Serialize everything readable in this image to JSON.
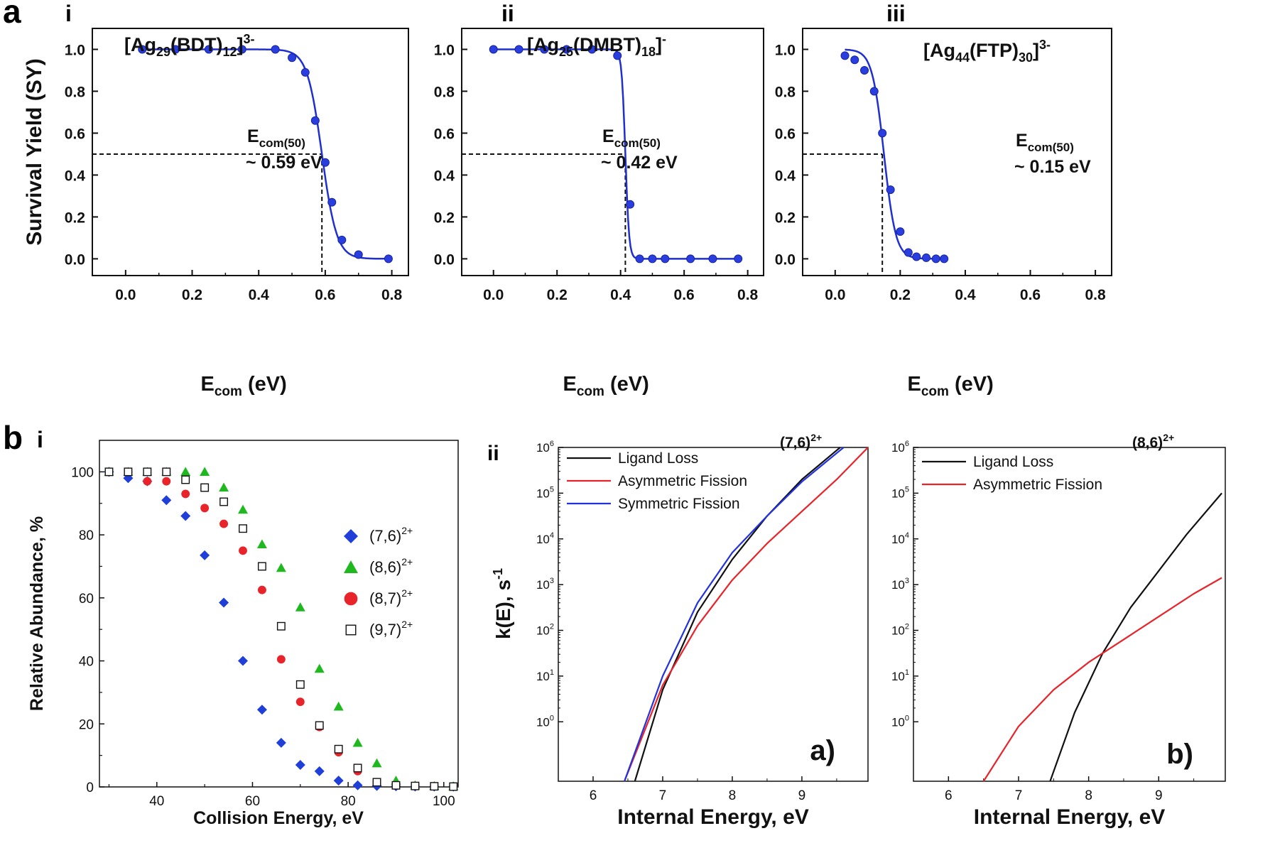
{
  "panel_labels": {
    "a": "a",
    "b": "b",
    "a_i": "i",
    "a_ii": "ii",
    "a_iii": "iii",
    "b_i": "i",
    "b_ii": "ii"
  },
  "chart_data": [
    {
      "id": "a-i",
      "type": "scatter",
      "title": "[Ag29(BDT)12]3-",
      "title_parts": {
        "base": "[Ag",
        "n1": "29",
        "mid": "(BDT)",
        "n2": "12",
        "close": "]",
        "charge": "3-"
      },
      "xlabel": "Ecom (eV)",
      "xlabel_parts": {
        "main": "E",
        "sub": "com",
        "tail": " (eV)"
      },
      "ylabel": "Survival Yield (SY)",
      "xlim": [
        -0.1,
        0.85
      ],
      "ylim": [
        -0.08,
        1.1
      ],
      "xticks": [
        0.0,
        0.2,
        0.4,
        0.6,
        0.8
      ],
      "yticks": [
        0.0,
        0.2,
        0.4,
        0.6,
        0.8,
        1.0
      ],
      "x": [
        0.05,
        0.15,
        0.25,
        0.35,
        0.45,
        0.5,
        0.54,
        0.57,
        0.6,
        0.62,
        0.65,
        0.7,
        0.79
      ],
      "y": [
        1.0,
        1.0,
        1.0,
        1.0,
        1.0,
        0.96,
        0.89,
        0.66,
        0.46,
        0.27,
        0.09,
        0.02,
        0.0
      ],
      "fit": {
        "x0": 0.59,
        "k": 45
      },
      "e50": 0.59,
      "annotation": {
        "label_main": "E",
        "label_sub": "com(50)",
        "value": "~ 0.59 eV"
      }
    },
    {
      "id": "a-ii",
      "type": "scatter",
      "title": "[Ag25(DMBT)18]-",
      "title_parts": {
        "base": "[Ag",
        "n1": "25",
        "mid": "(DMBT)",
        "n2": "18",
        "close": "]",
        "charge": "-"
      },
      "xlabel": "Ecom (eV)",
      "xlabel_parts": {
        "main": "E",
        "sub": "com",
        "tail": " (eV)"
      },
      "xlim": [
        -0.1,
        0.85
      ],
      "ylim": [
        -0.08,
        1.1
      ],
      "xticks": [
        0.0,
        0.2,
        0.4,
        0.6,
        0.8
      ],
      "yticks": [
        0.0,
        0.2,
        0.4,
        0.6,
        0.8,
        1.0
      ],
      "x": [
        0.0,
        0.08,
        0.16,
        0.23,
        0.31,
        0.39,
        0.43,
        0.46,
        0.5,
        0.54,
        0.62,
        0.69,
        0.77
      ],
      "y": [
        1.0,
        1.0,
        1.0,
        1.0,
        1.0,
        0.97,
        0.26,
        0.0,
        0.0,
        0.0,
        0.0,
        0.0,
        0.0
      ],
      "fit": {
        "x0": 0.415,
        "k": 170
      },
      "e50": 0.415,
      "annotation": {
        "label_main": "E",
        "label_sub": "com(50)",
        "value": "~ 0.42 eV"
      }
    },
    {
      "id": "a-iii",
      "type": "scatter",
      "title": "[Ag44(FTP)30]3-",
      "title_parts": {
        "base": "[Ag",
        "n1": "44",
        "mid": "(FTP)",
        "n2": "30",
        "close": "]",
        "charge": "3-"
      },
      "xlabel": "Ecom (eV)",
      "xlabel_parts": {
        "main": "E",
        "sub": "com",
        "tail": " (eV)"
      },
      "xlim": [
        -0.1,
        0.85
      ],
      "ylim": [
        -0.08,
        1.1
      ],
      "xticks": [
        0.0,
        0.2,
        0.4,
        0.6,
        0.8
      ],
      "yticks": [
        0.0,
        0.2,
        0.4,
        0.6,
        0.8,
        1.0
      ],
      "x": [
        0.03,
        0.06,
        0.09,
        0.12,
        0.145,
        0.17,
        0.2,
        0.225,
        0.25,
        0.28,
        0.31,
        0.335
      ],
      "y": [
        0.97,
        0.95,
        0.9,
        0.8,
        0.6,
        0.33,
        0.13,
        0.03,
        0.01,
        0.005,
        0.0,
        0.0
      ],
      "fit": {
        "x0": 0.15,
        "k": 55
      },
      "e50": 0.145,
      "annotation": {
        "label_main": "E",
        "label_sub": "com(50)",
        "value": "~ 0.15 eV"
      }
    },
    {
      "id": "b-i",
      "type": "scatter",
      "xlabel": "Collision Energy, eV",
      "ylabel": "Relative Abundance, %",
      "xlim": [
        28,
        103
      ],
      "ylim": [
        0,
        110
      ],
      "xticks": [
        40,
        60,
        80,
        100
      ],
      "yticks": [
        0,
        20,
        40,
        60,
        80,
        100
      ],
      "series": [
        {
          "name": "(7,6)2+",
          "label_main": "(7,6)",
          "label_sup": "2+",
          "marker": "diamond",
          "color": "#1f3fd8",
          "x": [
            30,
            34,
            38,
            42,
            46,
            50,
            54,
            58,
            62,
            66,
            70,
            74,
            78,
            82,
            86,
            90,
            94,
            98,
            102
          ],
          "y": [
            100,
            98,
            97,
            91,
            86,
            73.5,
            58.5,
            40,
            24.5,
            14,
            7,
            5,
            2,
            0.5,
            0.3,
            0.2,
            0.1,
            0.1,
            0.1
          ]
        },
        {
          "name": "(8,6)2+",
          "label_main": "(8,6)",
          "label_sup": "2+",
          "marker": "triangle",
          "color": "#1fb81f",
          "x": [
            30,
            34,
            38,
            42,
            46,
            50,
            54,
            58,
            62,
            66,
            70,
            74,
            78,
            82,
            86,
            90,
            94,
            98,
            102
          ],
          "y": [
            100,
            100,
            100,
            100,
            100,
            100,
            95,
            88,
            77,
            69.5,
            57,
            37.5,
            25.5,
            14,
            7.5,
            2,
            0.5,
            0.3,
            0.2
          ]
        },
        {
          "name": "(8,7)2+",
          "label_main": "(8,7)",
          "label_sup": "2+",
          "marker": "circle",
          "color": "#e8232a",
          "x": [
            30,
            34,
            38,
            42,
            46,
            50,
            54,
            58,
            62,
            66,
            70,
            74,
            78,
            82,
            86,
            90,
            94,
            98,
            102
          ],
          "y": [
            100,
            100,
            97,
            97,
            93,
            88.5,
            83.5,
            75,
            62.5,
            40.5,
            27,
            19,
            11,
            5,
            1.5,
            0.5,
            0.3,
            0.2,
            0.1
          ]
        },
        {
          "name": "(9,7)2+",
          "label_main": "(9,7)",
          "label_sup": "2+",
          "marker": "square-open",
          "color": "#111111",
          "x": [
            30,
            34,
            38,
            42,
            46,
            50,
            54,
            58,
            62,
            66,
            70,
            74,
            78,
            82,
            86,
            90,
            94,
            98,
            102
          ],
          "y": [
            100,
            100,
            100,
            100,
            97.5,
            95,
            90.5,
            82,
            70,
            51,
            32.5,
            19.5,
            12,
            6,
            1.5,
            0.5,
            0.3,
            0.2,
            0.1
          ]
        }
      ]
    },
    {
      "id": "b-ii-a",
      "type": "line",
      "yscale": "log",
      "title": "(7,6)2+",
      "title_parts": {
        "main": "(7,6)",
        "sup": "2+"
      },
      "corner_label": "a)",
      "xlabel": "Internal Energy, eV",
      "ylabel": "k(E), s-1",
      "ylabel_parts": {
        "main": "k(E), s",
        "sup": "-1"
      },
      "xlim": [
        5.5,
        9.95
      ],
      "ylim_exp": [
        -1.3,
        6
      ],
      "xticks": [
        6,
        7,
        8,
        9
      ],
      "yticks_exp": [
        0,
        1,
        2,
        3,
        4,
        5,
        6
      ],
      "series": [
        {
          "name": "Ligand Loss",
          "color": "#111111",
          "x": [
            6.6,
            7.0,
            7.5,
            8.0,
            8.5,
            9.0,
            9.55
          ],
          "log10_y": [
            -1.3,
            0.7,
            2.4,
            3.55,
            4.5,
            5.3,
            6.0
          ]
        },
        {
          "name": "Asymmetric Fission",
          "color": "#e8232a",
          "x": [
            6.45,
            7.0,
            7.5,
            8.0,
            8.5,
            9.0,
            9.5,
            9.95
          ],
          "log10_y": [
            -1.3,
            0.8,
            2.1,
            3.1,
            3.9,
            4.6,
            5.3,
            6.0
          ]
        },
        {
          "name": "Symmetric Fission",
          "color": "#2233dd",
          "x": [
            6.45,
            7.0,
            7.5,
            8.0,
            8.5,
            9.0,
            9.6
          ],
          "log10_y": [
            -1.3,
            1.0,
            2.6,
            3.7,
            4.5,
            5.25,
            6.0
          ]
        }
      ]
    },
    {
      "id": "b-ii-b",
      "type": "line",
      "yscale": "log",
      "title": "(8,6)2+",
      "title_parts": {
        "main": "(8,6)",
        "sup": "2+"
      },
      "corner_label": "b)",
      "xlabel": "Internal Energy, eV",
      "xlim": [
        5.5,
        9.95
      ],
      "ylim_exp": [
        -1.3,
        6
      ],
      "xticks": [
        6,
        7,
        8,
        9
      ],
      "yticks_exp": [
        0,
        1,
        2,
        3,
        4,
        5,
        6
      ],
      "series": [
        {
          "name": "Ligand Loss",
          "color": "#111111",
          "x": [
            7.45,
            7.8,
            8.2,
            8.6,
            9.0,
            9.4,
            9.9
          ],
          "log10_y": [
            -1.3,
            0.2,
            1.5,
            2.5,
            3.3,
            4.1,
            5.0
          ]
        },
        {
          "name": "Asymmetric Fission",
          "color": "#e8232a",
          "x": [
            6.5,
            7.0,
            7.5,
            8.0,
            8.5,
            9.0,
            9.5,
            9.9
          ],
          "log10_y": [
            -1.3,
            -0.1,
            0.7,
            1.3,
            1.8,
            2.3,
            2.8,
            3.15
          ]
        }
      ]
    }
  ]
}
